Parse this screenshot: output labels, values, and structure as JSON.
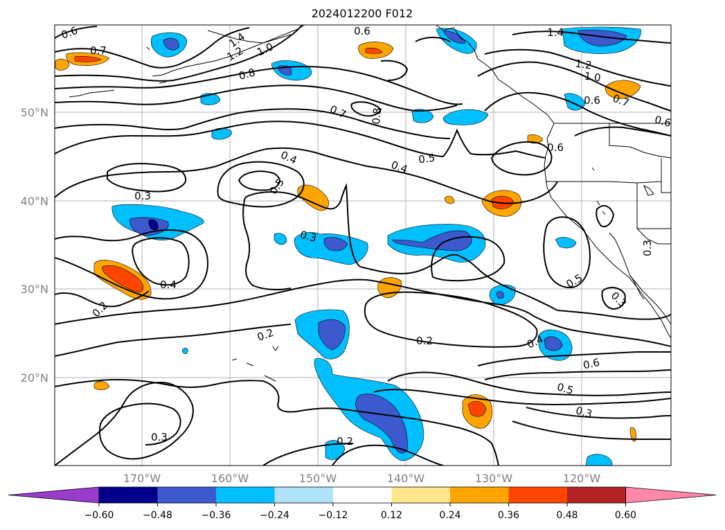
{
  "title": "2024012200 F012",
  "lat_labels": [
    "50°N",
    "40°N",
    "30°N",
    "20°N"
  ],
  "lon_labels": [
    "170°W",
    "160°W",
    "150°W",
    "140°W",
    "130°W",
    "120°W"
  ],
  "colorbar": {
    "ticks": [
      "−0.60",
      "−0.48",
      "−0.36",
      "−0.24",
      "−0.12",
      "0.12",
      "0.24",
      "0.36",
      "0.48",
      "0.60"
    ],
    "colors": [
      "#9a3ccb",
      "#00008b",
      "#3c5acd",
      "#00bfff",
      "#b0e2fa",
      "#ffffff",
      "#ffe68c",
      "#ffa500",
      "#ff4500",
      "#b22222",
      "#ff88aa"
    ]
  },
  "contour_labels": [
    "0.6",
    "0.7",
    "1.4",
    "1.2",
    "1.0",
    "0.8",
    "0.6",
    "1.4",
    "1.2",
    "1.0",
    "0.6",
    "0.7",
    "0.6",
    "0.7",
    "0.8",
    "0.5",
    "0.4",
    "0.4",
    "0.5",
    "0.3",
    "0.3",
    "0.4",
    "0.2",
    "0.2",
    "0.2",
    "0.5",
    "0.3",
    "0.3",
    "0.4",
    "0.6",
    "0.5",
    "0.3",
    "0.3",
    "0.2",
    "0.6"
  ]
}
